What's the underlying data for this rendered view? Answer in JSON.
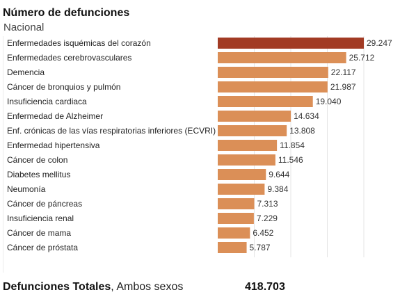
{
  "header": {
    "title": "Número de defunciones",
    "subtitle": "Nacional"
  },
  "colors": {
    "highlight": "#a23b24",
    "bar": "#db8f57",
    "grid": "#e5e5e5",
    "label": "#222222",
    "value": "#333333"
  },
  "chart_data": {
    "type": "bar",
    "orientation": "horizontal",
    "title": "Número de defunciones",
    "subtitle": "Nacional",
    "categories": [
      "Enfermedades isquémicas del corazón",
      "Enfermedades cerebrovasculares",
      "Demencia",
      "Cáncer de bronquios y pulmón",
      "Insuficiencia cardiaca",
      "Enfermedad de Alzheimer",
      "Enf. crónicas de las vías respiratorias inferiores (ECVRI)",
      "Enfermedad hipertensiva",
      "Cáncer de colon",
      "Diabetes mellitus",
      "Neumonía",
      "Cáncer de páncreas",
      "Insuficiencia renal",
      "Cáncer de mama",
      "Cáncer de próstata"
    ],
    "values": [
      29247,
      25712,
      22117,
      21987,
      19040,
      14634,
      13808,
      11854,
      11546,
      9644,
      9384,
      7313,
      7229,
      6452,
      5787
    ],
    "value_labels": [
      "29.247",
      "25.712",
      "22.117",
      "21.987",
      "19.040",
      "14.634",
      "13.808",
      "11.854",
      "11.546",
      "9.644",
      "9.384",
      "7.313",
      "7.229",
      "6.452",
      "5.787"
    ],
    "highlighted_index": 0,
    "xlim": [
      0,
      29247
    ],
    "grid": true,
    "legend": "none"
  },
  "footer": {
    "label": "Defunciones Totales",
    "separator": ", ",
    "sublabel": "Ambos sexos",
    "total": "418.703"
  }
}
